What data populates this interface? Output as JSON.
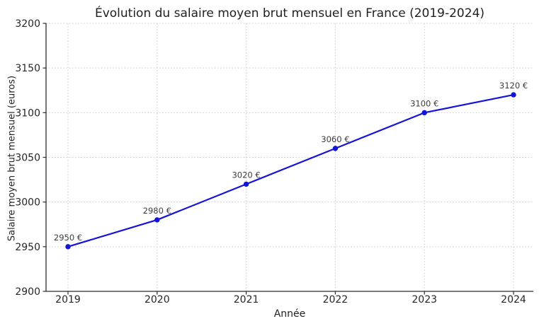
{
  "chart_data": {
    "type": "line",
    "title": "Évolution du salaire moyen brut mensuel en France (2019-2024)",
    "xlabel": "Année",
    "ylabel": "Salaire moyen brut mensuel (euros)",
    "x": [
      "2019",
      "2020",
      "2021",
      "2022",
      "2023",
      "2024"
    ],
    "y": [
      2950,
      2980,
      3020,
      3060,
      3100,
      3120
    ],
    "point_labels": [
      "2950 €",
      "2980 €",
      "3020 €",
      "3060 €",
      "3100 €",
      "3120 €"
    ],
    "ylim": [
      2900,
      3200
    ],
    "yticks": [
      2900,
      2950,
      3000,
      3050,
      3100,
      3150,
      3200
    ],
    "grid": true,
    "legend": "none",
    "colors": {
      "line": "#1414d6",
      "marker": "#1414d6",
      "grid": "#c9c9c9",
      "axis": "#2e2e2e",
      "tick_text": "#262626",
      "annotation_text": "#3c3c3c",
      "background": "#ffffff"
    }
  }
}
